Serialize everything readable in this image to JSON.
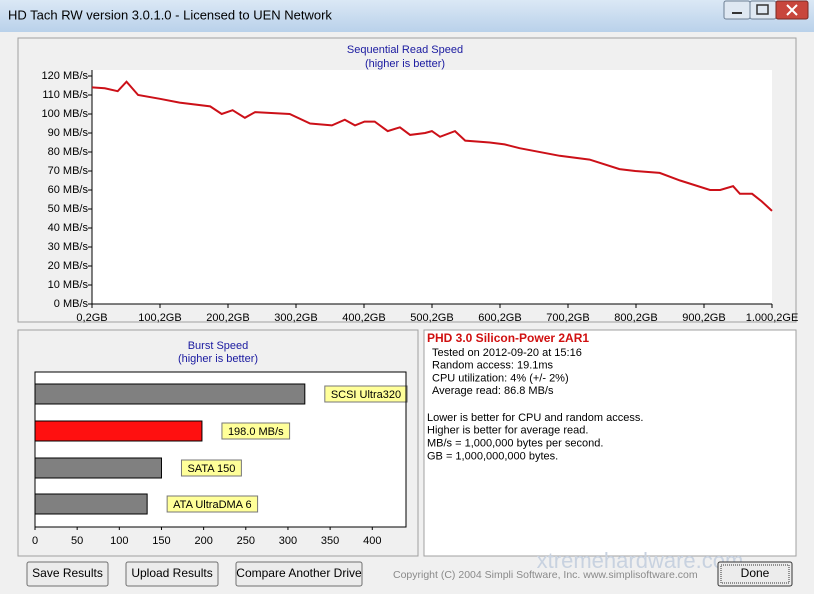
{
  "window": {
    "title": "HD Tach RW version 3.0.1.0 - Licensed to UEN Network"
  },
  "read_chart": {
    "type": "line",
    "title": "Sequential Read Speed",
    "subtitle": "(higher is better)",
    "x": [
      0.2,
      19,
      38,
      51,
      68,
      100,
      129,
      174,
      191,
      207,
      225,
      240,
      291,
      321,
      353,
      372,
      387,
      401,
      416,
      435,
      453,
      468,
      490,
      500,
      512,
      534,
      549,
      585,
      607,
      629,
      688,
      732,
      776,
      799,
      835,
      865,
      909,
      924,
      943,
      953,
      971,
      985,
      1000.2
    ],
    "series": [
      {
        "color": "#cc1018",
        "values": [
          114,
          113.5,
          112,
          117,
          110,
          108,
          106,
          104,
          100,
          102,
          98,
          101,
          100,
          95,
          94,
          97,
          94,
          96,
          96,
          91,
          93,
          89,
          90,
          91,
          88,
          91,
          86,
          85,
          84,
          82,
          78,
          76,
          71,
          70,
          69,
          65,
          60,
          60,
          62,
          58,
          58,
          54,
          49
        ]
      }
    ],
    "xlim": [
      0.2,
      1000.2
    ],
    "xticks": [
      {
        "value": 0.2,
        "label": "0,2GB"
      },
      {
        "value": 100.2,
        "label": "100,2GB"
      },
      {
        "value": 200.2,
        "label": "200,2GB"
      },
      {
        "value": 300.2,
        "label": "300,2GB"
      },
      {
        "value": 400.2,
        "label": "400,2GB"
      },
      {
        "value": 500.2,
        "label": "500,2GB"
      },
      {
        "value": 600.2,
        "label": "600,2GB"
      },
      {
        "value": 700.2,
        "label": "700,2GB"
      },
      {
        "value": 800.2,
        "label": "800,2GB"
      },
      {
        "value": 900.2,
        "label": "900,2GB"
      },
      {
        "value": 1000.2,
        "label": "1.000,2GE"
      }
    ],
    "ylim": [
      0,
      120
    ],
    "yticks": [
      {
        "value": 0,
        "label": "0 MB/s"
      },
      {
        "value": 10,
        "label": "10 MB/s"
      },
      {
        "value": 20,
        "label": "20 MB/s"
      },
      {
        "value": 30,
        "label": "30 MB/s"
      },
      {
        "value": 40,
        "label": "40 MB/s"
      },
      {
        "value": 50,
        "label": "50 MB/s"
      },
      {
        "value": 60,
        "label": "60 MB/s"
      },
      {
        "value": 70,
        "label": "70 MB/s"
      },
      {
        "value": 80,
        "label": "80 MB/s"
      },
      {
        "value": 90,
        "label": "90 MB/s"
      },
      {
        "value": 100,
        "label": "100 MB/s"
      },
      {
        "value": 110,
        "label": "110 MB/s"
      },
      {
        "value": 120,
        "label": "120 MB/s"
      }
    ]
  },
  "burst_chart": {
    "type": "bar",
    "title": "Burst Speed",
    "subtitle": "(higher is better)",
    "categories": [
      "SCSI Ultra320",
      "198.0 MB/s",
      "SATA 150",
      "ATA UltraDMA 6"
    ],
    "values": [
      320,
      198,
      150,
      133
    ],
    "colors": [
      "#808080",
      "#ff1010",
      "#808080",
      "#808080"
    ],
    "xlim": [
      0,
      440
    ],
    "xticks": [
      0,
      50,
      100,
      150,
      200,
      250,
      300,
      350,
      400
    ]
  },
  "info": {
    "heading": "PHD 3.0 Silicon-Power 2AR1",
    "lines": [
      "Tested on 2012-09-20 at 15:16",
      "Random access: 19.1ms",
      "CPU utilization: 4% (+/- 2%)",
      "Average read: 86.8 MB/s"
    ],
    "notes": [
      "Lower is better for CPU and random access.",
      "Higher is better for average read.",
      "MB/s = 1,000,000 bytes per second.",
      "GB = 1,000,000,000 bytes."
    ]
  },
  "buttons": [
    "Save Results",
    "Upload Results",
    "Compare Another Drive",
    "Done"
  ],
  "copyright": "Copyright (C) 2004 Simpli Software, Inc. www.simplisoftware.com",
  "watermark": "xtremehardware.com"
}
